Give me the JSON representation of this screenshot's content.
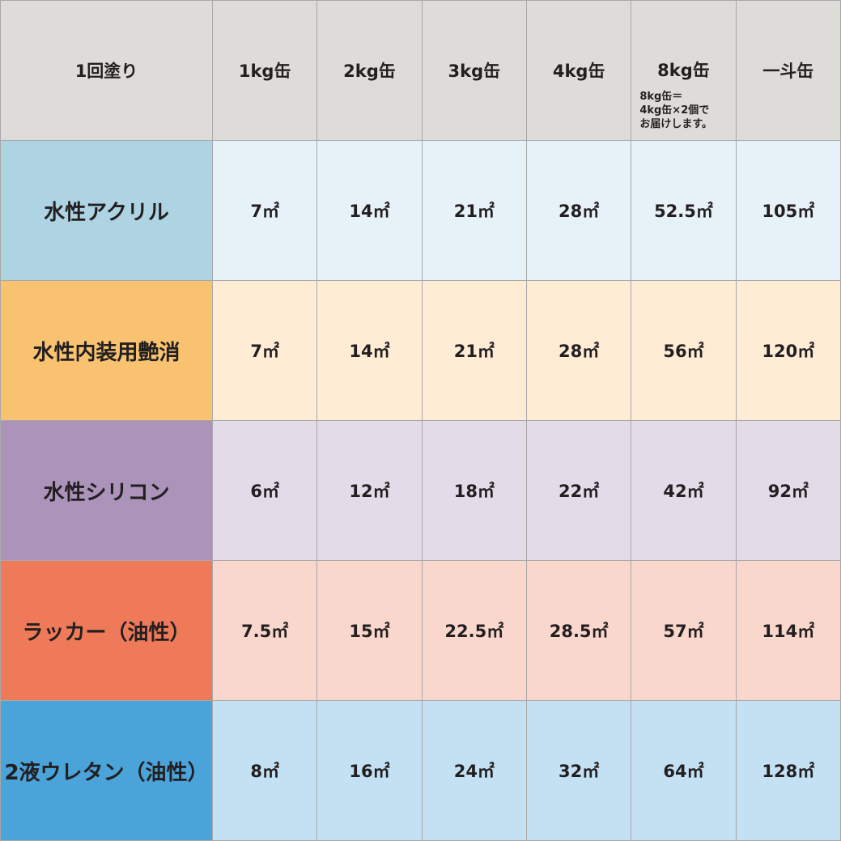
{
  "header": {
    "corner": "1回塗り",
    "columns": [
      "1kg缶",
      "2kg缶",
      "3kg缶",
      "4kg缶",
      "8kg缶",
      "一斗缶"
    ],
    "note_8kg": [
      "8kg缶＝",
      "4kg缶×2個で",
      "お届けします。"
    ]
  },
  "rows": [
    {
      "label": "水性アクリル",
      "label_color": "#aed4e3",
      "cell_color": "#e6f2f7",
      "values": [
        "7㎡",
        "14㎡",
        "21㎡",
        "28㎡",
        "52.5㎡",
        "105㎡"
      ]
    },
    {
      "label": "水性内装用艶消",
      "label_color": "#f8c270",
      "cell_color": "#feecd4",
      "values": [
        "7㎡",
        "14㎡",
        "21㎡",
        "28㎡",
        "56㎡",
        "120㎡"
      ]
    },
    {
      "label": "水性シリコン",
      "label_color": "#ab93b9",
      "cell_color": "#e4dbe8",
      "values": [
        "6㎡",
        "12㎡",
        "18㎡",
        "22㎡",
        "42㎡",
        "92㎡"
      ]
    },
    {
      "label": "ラッカー（油性）",
      "label_color": "#ef7a5a",
      "cell_color": "#f9d7cd",
      "values": [
        "7.5㎡",
        "15㎡",
        "22.5㎡",
        "28.5㎡",
        "57㎡",
        "114㎡"
      ]
    },
    {
      "label": "2液ウレタン（油性）",
      "label_color": "#4aa3d9",
      "cell_color": "#c3e1f3",
      "values": [
        "8㎡",
        "16㎡",
        "24㎡",
        "32㎡",
        "64㎡",
        "128㎡"
      ]
    }
  ]
}
